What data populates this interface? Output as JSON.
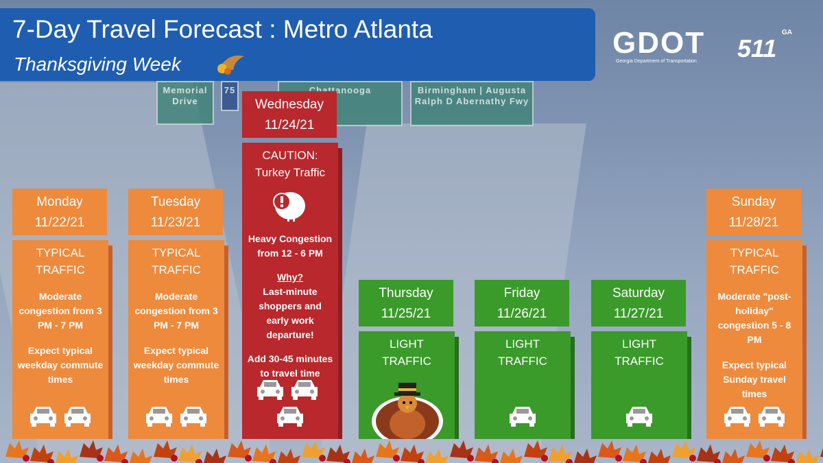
{
  "header": {
    "title": "7-Day Travel Forecast : Metro Atlanta",
    "subtitle": "Thanksgiving Week"
  },
  "logos": {
    "gdot": "GDOT",
    "gdot_caption": "Georgia Department of Transportation",
    "five11": "511",
    "five11_badge": "GA"
  },
  "background_signs": [
    "Memorial Drive",
    "75",
    "Chattanooga",
    "Birmingham | Augusta",
    "Ralph D Abernathy Fwy"
  ],
  "days": [
    {
      "name": "Monday",
      "date": "11/22/21",
      "status": "TYPICAL TRAFFIC",
      "details": [
        "Moderate congestion from 3 PM - 7 PM",
        "Expect typical weekday commute times"
      ]
    },
    {
      "name": "Tuesday",
      "date": "11/23/21",
      "status": "TYPICAL TRAFFIC",
      "details": [
        "Moderate congestion from 3 PM - 7 PM",
        "Expect typical weekday commute times"
      ]
    },
    {
      "name": "Wednesday",
      "date": "11/24/21",
      "status": "CAUTION: Turkey Traffic",
      "details": [
        "Heavy Congestion from 12 - 6 PM",
        "Why?",
        "Last-minute shoppers and early work departure!",
        "Add 30-45 minutes to travel time"
      ]
    },
    {
      "name": "Thursday",
      "date": "11/25/21",
      "status": "LIGHT TRAFFIC",
      "details": []
    },
    {
      "name": "Friday",
      "date": "11/26/21",
      "status": "LIGHT TRAFFIC",
      "details": []
    },
    {
      "name": "Saturday",
      "date": "11/27/21",
      "status": "LIGHT TRAFFIC",
      "details": []
    },
    {
      "name": "Sunday",
      "date": "11/28/21",
      "status": "TYPICAL TRAFFIC",
      "details": [
        "Moderate \"post-holiday\" congestion 5 - 8 PM",
        "Expect typical Sunday travel times"
      ]
    }
  ]
}
